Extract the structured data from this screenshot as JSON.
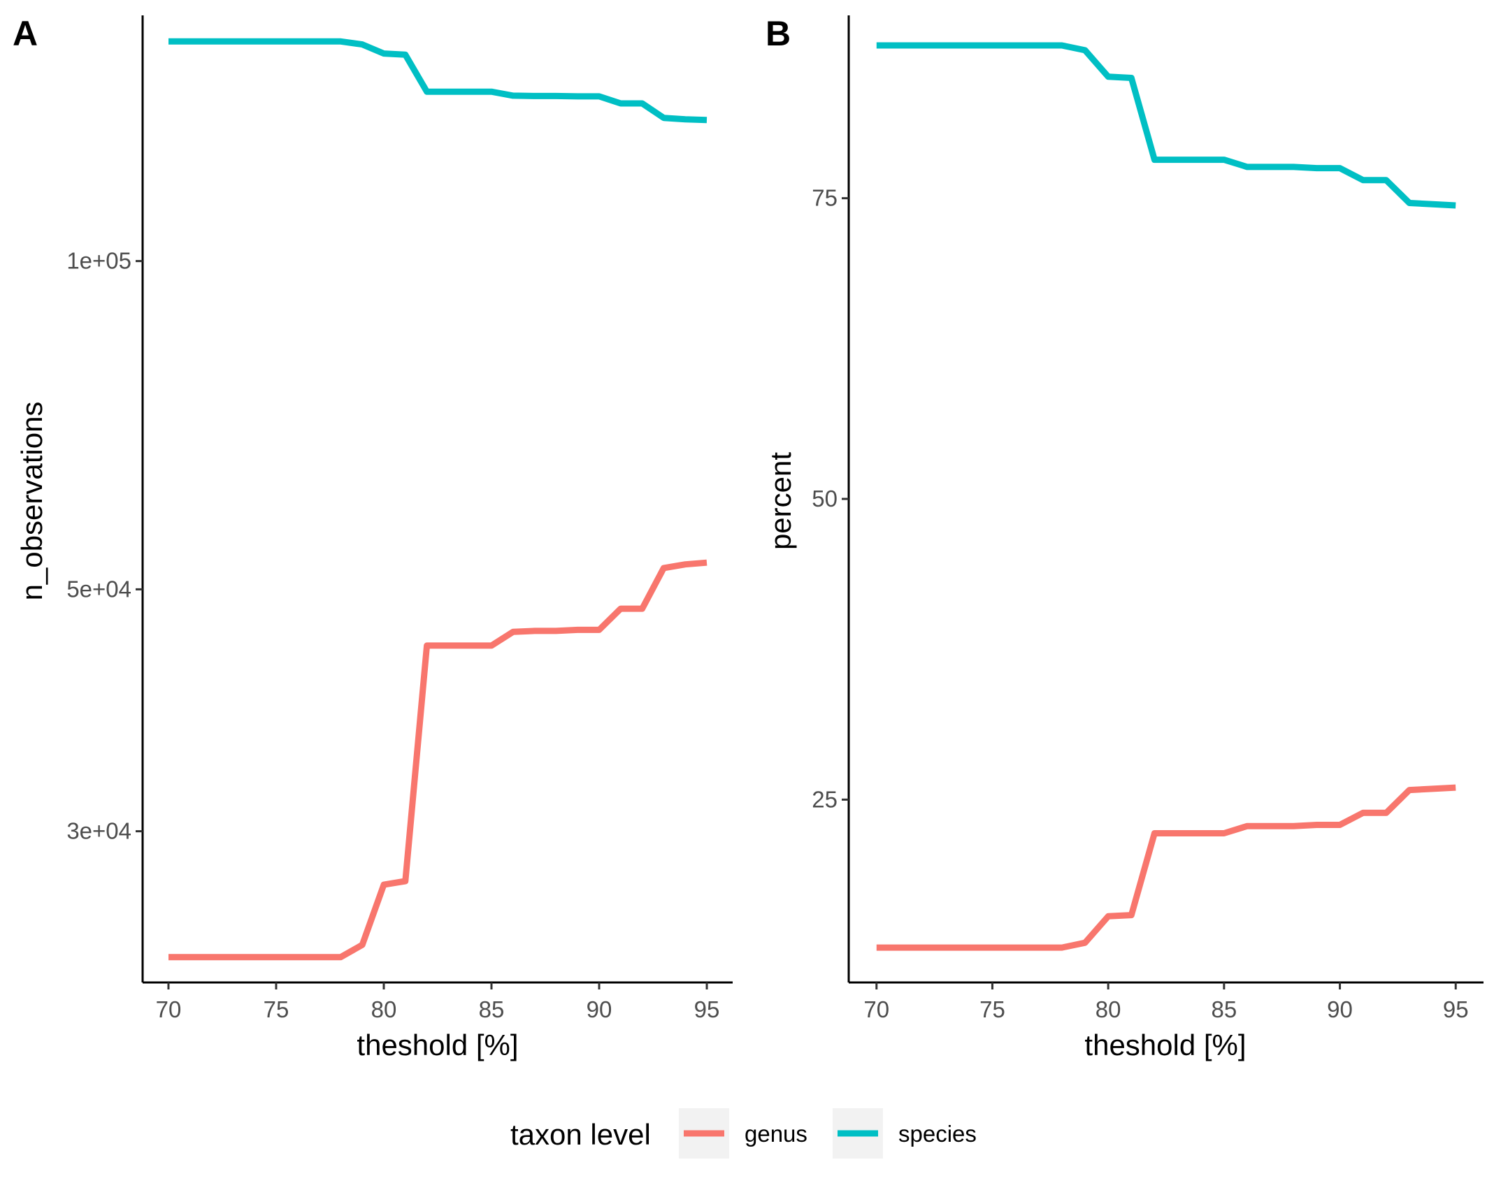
{
  "colors": {
    "genus": "#F8766D",
    "species": "#00BFC4",
    "legend_key_bg": "#f2f2f2"
  },
  "legend": {
    "title": "taxon level",
    "placement": "bottom",
    "items": [
      {
        "label": "genus",
        "color": "#F8766D"
      },
      {
        "label": "species",
        "color": "#00BFC4"
      }
    ]
  },
  "chart_data": [
    {
      "tag": "A",
      "type": "line",
      "xlabel": "theshold [%]",
      "ylabel": "n_observations",
      "y_scale": "log10",
      "xlim": [
        68.8,
        96.2
      ],
      "ylim": [
        21800,
        168000
      ],
      "xticks": [
        70,
        75,
        80,
        85,
        90,
        95
      ],
      "xtick_labels": [
        "70",
        "75",
        "80",
        "85",
        "90",
        "95"
      ],
      "yticks": [
        30000,
        50000,
        100000
      ],
      "ytick_labels": [
        "3e+04",
        "5e+04",
        "1e+05"
      ],
      "grid": false,
      "x": [
        70,
        71,
        72,
        73,
        74,
        75,
        76,
        77,
        78,
        79,
        80,
        81,
        82,
        83,
        84,
        85,
        86,
        87,
        88,
        89,
        90,
        91,
        92,
        93,
        94,
        95
      ],
      "series": [
        {
          "name": "genus",
          "color": "#F8766D",
          "values": [
            23000,
            23000,
            23000,
            23000,
            23000,
            23000,
            23000,
            23000,
            23000,
            23600,
            26800,
            27000,
            44400,
            44400,
            44400,
            44400,
            45700,
            45800,
            45800,
            45900,
            45900,
            48000,
            48000,
            52300,
            52700,
            52900
          ]
        },
        {
          "name": "species",
          "color": "#00BFC4",
          "values": [
            159000,
            159000,
            159000,
            159000,
            159000,
            159000,
            159000,
            159000,
            159000,
            158000,
            155000,
            154600,
            143000,
            143000,
            143000,
            143000,
            141800,
            141700,
            141700,
            141600,
            141600,
            139500,
            139500,
            135300,
            134900,
            134700
          ]
        }
      ]
    },
    {
      "tag": "B",
      "type": "line",
      "xlabel": "theshold [%]",
      "ylabel": "percent",
      "xlim": [
        68.8,
        96.2
      ],
      "ylim": [
        9.8,
        90.2
      ],
      "xticks": [
        70,
        75,
        80,
        85,
        90,
        95
      ],
      "xtick_labels": [
        "70",
        "75",
        "80",
        "85",
        "90",
        "95"
      ],
      "yticks": [
        25,
        50,
        75
      ],
      "ytick_labels": [
        "25",
        "50",
        "75"
      ],
      "grid": false,
      "x": [
        70,
        71,
        72,
        73,
        74,
        75,
        76,
        77,
        78,
        79,
        80,
        81,
        82,
        83,
        84,
        85,
        86,
        87,
        88,
        89,
        90,
        91,
        92,
        93,
        94,
        95
      ],
      "series": [
        {
          "name": "genus",
          "color": "#F8766D",
          "values": [
            12.7,
            12.7,
            12.7,
            12.7,
            12.7,
            12.7,
            12.7,
            12.7,
            12.7,
            13.1,
            15.3,
            15.4,
            22.2,
            22.2,
            22.2,
            22.2,
            22.8,
            22.8,
            22.8,
            22.9,
            22.9,
            23.9,
            23.9,
            25.8,
            25.9,
            26.0
          ]
        },
        {
          "name": "species",
          "color": "#00BFC4",
          "values": [
            87.7,
            87.7,
            87.7,
            87.7,
            87.7,
            87.7,
            87.7,
            87.7,
            87.7,
            87.3,
            85.1,
            85.0,
            78.2,
            78.2,
            78.2,
            78.2,
            77.6,
            77.6,
            77.6,
            77.5,
            77.5,
            76.5,
            76.5,
            74.6,
            74.5,
            74.4
          ]
        }
      ]
    }
  ]
}
